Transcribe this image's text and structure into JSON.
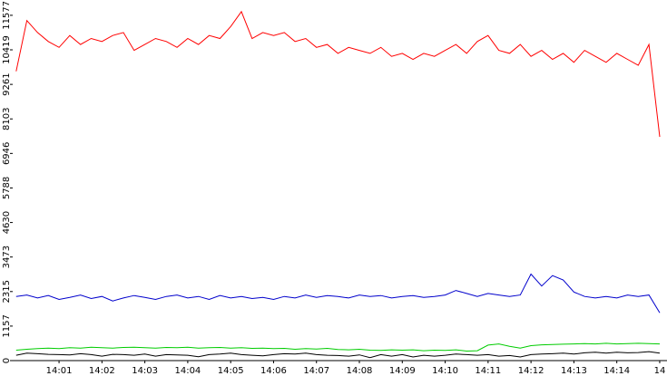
{
  "chart_data": {
    "type": "line",
    "x": [
      840,
      840.25,
      840.5,
      840.75,
      841,
      841.25,
      841.5,
      841.75,
      842,
      842.25,
      842.5,
      842.75,
      843,
      843.25,
      843.5,
      843.75,
      844,
      844.25,
      844.5,
      844.75,
      845,
      845.25,
      845.5,
      845.75,
      846,
      846.25,
      846.5,
      846.75,
      847,
      847.25,
      847.5,
      847.75,
      848,
      848.25,
      848.5,
      848.75,
      849,
      849.25,
      849.5,
      849.75,
      850,
      850.25,
      850.5,
      850.75,
      851,
      851.25,
      851.5,
      851.75,
      852,
      852.25,
      852.5,
      852.75,
      853,
      853.25,
      853.5,
      853.75,
      854,
      854.25,
      854.5,
      854.75,
      855
    ],
    "series": [
      {
        "color": "#ff0000",
        "values": [
          9700,
          11400,
          11000,
          10700,
          10500,
          10900,
          10600,
          10800,
          10700,
          10900,
          11000,
          10400,
          10600,
          10800,
          10700,
          10500,
          10800,
          10600,
          10900,
          10800,
          11200,
          11700,
          10800,
          11000,
          10900,
          11000,
          10700,
          10800,
          10500,
          10600,
          10300,
          10500,
          10400,
          10300,
          10500,
          10200,
          10300,
          10100,
          10300,
          10200,
          10400,
          10600,
          10300,
          10700,
          10900,
          10400,
          10300,
          10600,
          10200,
          10400,
          10100,
          10300,
          10000,
          10400,
          10200,
          10000,
          10300,
          10100,
          9900,
          10600,
          7500
        ]
      },
      {
        "color": "#0000cc",
        "values": [
          2150,
          2200,
          2100,
          2180,
          2050,
          2120,
          2200,
          2080,
          2150,
          2000,
          2100,
          2180,
          2120,
          2050,
          2150,
          2200,
          2100,
          2150,
          2050,
          2180,
          2100,
          2150,
          2080,
          2120,
          2050,
          2150,
          2100,
          2200,
          2120,
          2180,
          2150,
          2100,
          2200,
          2150,
          2180,
          2100,
          2150,
          2180,
          2120,
          2150,
          2200,
          2350,
          2250,
          2150,
          2250,
          2200,
          2150,
          2200,
          2900,
          2500,
          2850,
          2700,
          2300,
          2150,
          2100,
          2150,
          2100,
          2200,
          2150,
          2200,
          1600
        ]
      },
      {
        "color": "#00cc00",
        "values": [
          350,
          380,
          400,
          420,
          400,
          430,
          420,
          450,
          430,
          420,
          440,
          450,
          430,
          420,
          440,
          430,
          450,
          420,
          430,
          440,
          420,
          430,
          410,
          420,
          400,
          410,
          380,
          400,
          390,
          410,
          370,
          360,
          380,
          350,
          340,
          360,
          350,
          360,
          330,
          350,
          340,
          360,
          320,
          330,
          520,
          560,
          480,
          420,
          500,
          530,
          540,
          550,
          560,
          570,
          560,
          580,
          560,
          570,
          580,
          570,
          560
        ]
      },
      {
        "color": "#000000",
        "values": [
          180,
          250,
          230,
          210,
          200,
          190,
          230,
          200,
          150,
          210,
          200,
          180,
          220,
          150,
          200,
          190,
          180,
          130,
          200,
          220,
          250,
          200,
          180,
          160,
          200,
          230,
          220,
          250,
          200,
          180,
          170,
          150,
          190,
          100,
          200,
          150,
          200,
          120,
          180,
          150,
          180,
          220,
          200,
          180,
          200,
          150,
          170,
          120,
          200,
          220,
          230,
          250,
          220,
          260,
          280,
          250,
          280,
          260,
          270,
          300,
          250
        ]
      }
    ],
    "xlim": [
      839.92,
      855.17
    ],
    "xticks": [
      {
        "value": 841,
        "label": "14:01"
      },
      {
        "value": 842,
        "label": "14:02"
      },
      {
        "value": 843,
        "label": "14:03"
      },
      {
        "value": 844,
        "label": "14:04"
      },
      {
        "value": 845,
        "label": "14:05"
      },
      {
        "value": 846,
        "label": "14:06"
      },
      {
        "value": 847,
        "label": "14:07"
      },
      {
        "value": 848,
        "label": "14:08"
      },
      {
        "value": 849,
        "label": "14:09"
      },
      {
        "value": 850,
        "label": "14:10"
      },
      {
        "value": 851,
        "label": "14:11"
      },
      {
        "value": 852,
        "label": "14:12"
      },
      {
        "value": 853,
        "label": "14:13"
      },
      {
        "value": 854,
        "label": "14:14"
      },
      {
        "value": 855,
        "label": "14"
      }
    ],
    "ylim": [
      0,
      12090
    ],
    "yticks": [
      0,
      1157,
      2315,
      3473,
      4630,
      5788,
      6946,
      8103,
      9261,
      10419,
      11577
    ]
  }
}
